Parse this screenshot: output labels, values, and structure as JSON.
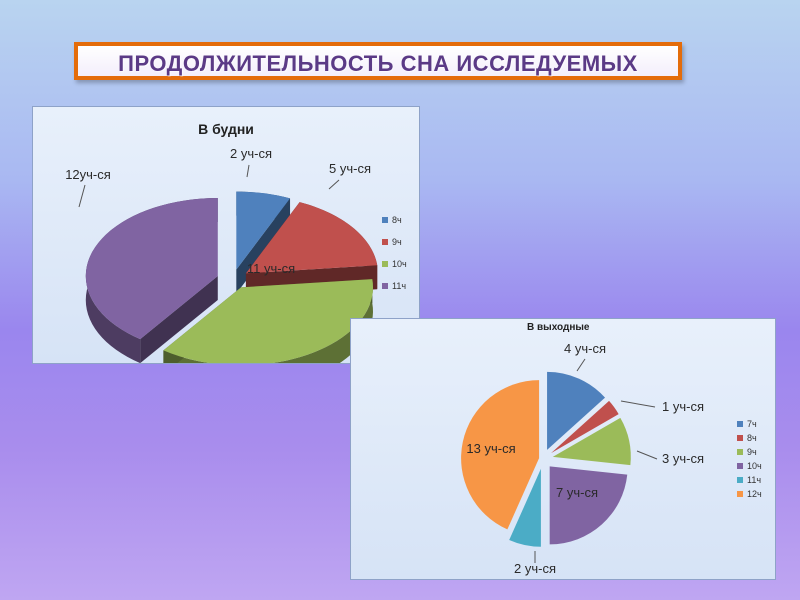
{
  "title": "Продолжительность сна исследуемых",
  "chart_data": [
    {
      "type": "pie",
      "three_d": true,
      "exploded": true,
      "title": "В будни",
      "categories": [
        "8ч",
        "9ч",
        "10ч",
        "11ч"
      ],
      "values": [
        2,
        5,
        11,
        12
      ],
      "data_labels": [
        "2 уч-ся",
        "5 уч-ся",
        "11 уч-ся",
        "12уч-ся"
      ],
      "colors": [
        "#4f81bd",
        "#c0504d",
        "#9bbb59",
        "#8064a2"
      ],
      "legend_position": "right"
    },
    {
      "type": "pie",
      "exploded": true,
      "title": "В выходные",
      "categories": [
        "7ч",
        "8ч",
        "9ч",
        "10ч",
        "11ч",
        "12ч"
      ],
      "values": [
        4,
        1,
        3,
        7,
        2,
        13
      ],
      "data_labels": [
        "4 уч-ся",
        "1 уч-ся",
        "3 уч-ся",
        "7 уч-ся",
        "2 уч-ся",
        "13 уч-ся"
      ],
      "colors": [
        "#4f81bd",
        "#c0504d",
        "#9bbb59",
        "#8064a2",
        "#4bacc6",
        "#f79646"
      ],
      "legend_position": "right"
    }
  ]
}
